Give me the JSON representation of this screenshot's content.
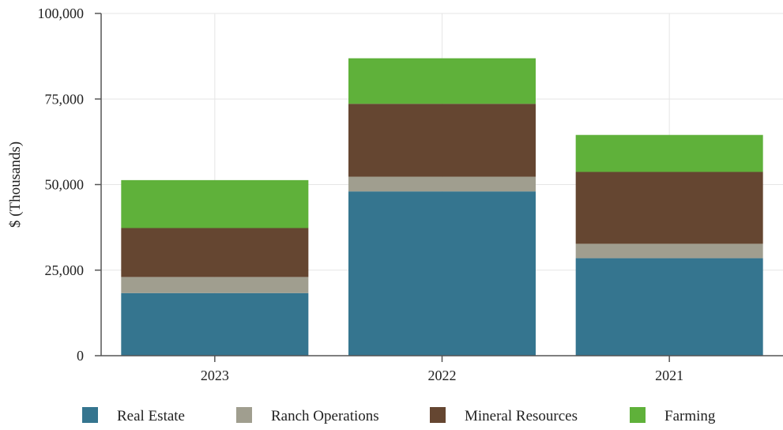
{
  "chart_data": {
    "type": "bar",
    "stacked": true,
    "title": "",
    "xlabel": "",
    "ylabel": "$ (Thousands)",
    "categories": [
      "2023",
      "2022",
      "2021"
    ],
    "ylim": [
      0,
      100000
    ],
    "yticks": [
      0,
      25000,
      50000,
      75000,
      100000
    ],
    "ytick_labels": [
      "0",
      "25,000",
      "50,000",
      "75,000",
      "100,000"
    ],
    "grid": true,
    "legend_position": "bottom",
    "series": [
      {
        "name": "Real Estate",
        "color": "#35758f",
        "values": [
          18300,
          48000,
          28500
        ]
      },
      {
        "name": "Ranch Operations",
        "color": "#a09e8f",
        "values": [
          4700,
          4300,
          4200
        ]
      },
      {
        "name": "Mineral Resources",
        "color": "#654631",
        "values": [
          14300,
          21300,
          21000
        ]
      },
      {
        "name": "Farming",
        "color": "#5fb13a",
        "values": [
          14000,
          13300,
          10800
        ]
      }
    ]
  }
}
